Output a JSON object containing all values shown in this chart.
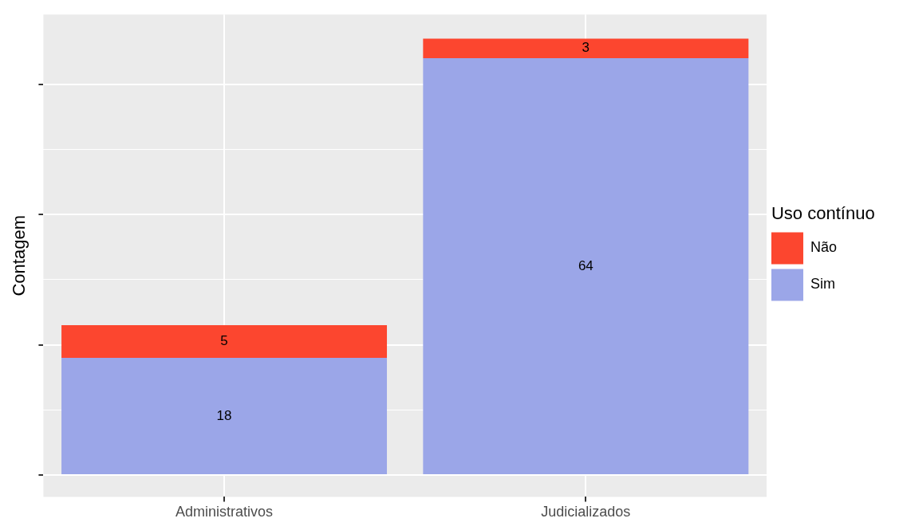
{
  "chart_data": {
    "type": "bar",
    "stacked": true,
    "categories": [
      "Administrativos",
      "Judicializados"
    ],
    "series": [
      {
        "name": "Sim",
        "color": "#9ba6e8",
        "values": [
          18,
          64
        ]
      },
      {
        "name": "Não",
        "color": "#fc462f",
        "values": [
          5,
          3
        ]
      }
    ],
    "ylabel": "Contagem",
    "legend_title": "Uso contínuo",
    "legend": "right",
    "data_labels": true,
    "grid": true,
    "ylim": [
      -3.35,
      70.7
    ],
    "yticks": [
      {
        "value": 0,
        "label": null
      },
      {
        "value": 10,
        "label": null
      },
      {
        "value": 20,
        "label": null
      },
      {
        "value": 30,
        "label": null
      },
      {
        "value": 40,
        "label": null
      },
      {
        "value": 50,
        "label": null
      },
      {
        "value": 60,
        "label": null
      }
    ],
    "tick_labels": "x"
  }
}
